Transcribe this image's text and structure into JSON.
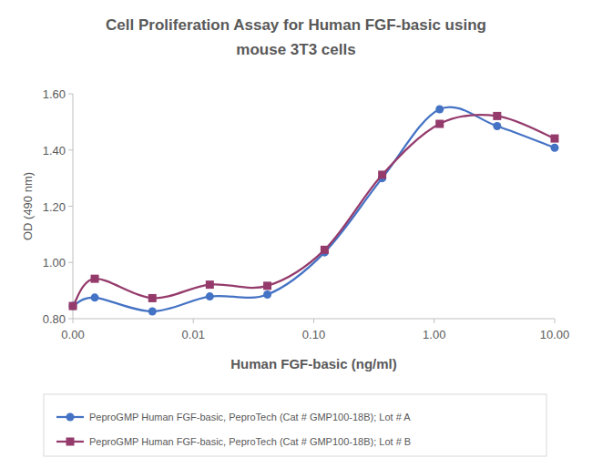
{
  "chart_data": {
    "type": "line",
    "title": "Cell Proliferation Assay for Human FGF-basic using mouse 3T3 cells",
    "x_label": "Human FGF-basic (ng/ml)",
    "y_label": "OD (490 nm)",
    "x": [
      0.001,
      0.00152,
      0.00457,
      0.0137,
      0.0412,
      0.123,
      0.37,
      1.11,
      3.33,
      10
    ],
    "series": [
      {
        "name": "PeproGMP Human FGF-basic, PeproTech (Cat # GMP100-18B); Lot # A",
        "color": "#4472c4",
        "marker": "circle",
        "line_style": "smooth",
        "values": [
          0.845,
          0.875,
          0.826,
          0.879,
          0.886,
          1.036,
          1.3,
          1.545,
          1.485,
          1.408
        ]
      },
      {
        "name": "PeproGMP Human FGF-basic, PeproTech (Cat # GMP100-18B); Lot # B",
        "color": "#943b6c",
        "marker": "square",
        "line_style": "smooth",
        "values": [
          0.845,
          0.942,
          0.873,
          0.921,
          0.917,
          1.045,
          1.312,
          1.493,
          1.521,
          1.441
        ]
      }
    ],
    "log": "x",
    "xlim": [
      0.001,
      10
    ],
    "xticks": [
      {
        "value": 0.001,
        "label": "0.00"
      },
      {
        "value": 0.01,
        "label": "0.01"
      },
      {
        "value": 0.1,
        "label": "0.10"
      },
      {
        "value": 1,
        "label": "1.00"
      },
      {
        "value": 10,
        "label": "10.00"
      }
    ],
    "ylim": [
      0.8,
      1.6
    ],
    "yticks": [
      {
        "value": 0.8,
        "label": "0.80"
      },
      {
        "value": 1.0,
        "label": "1.00"
      },
      {
        "value": 1.2,
        "label": "1.20"
      },
      {
        "value": 1.4,
        "label": "1.40"
      },
      {
        "value": 1.6,
        "label": "1.60"
      }
    ],
    "grid": false,
    "legend": "bottom"
  }
}
